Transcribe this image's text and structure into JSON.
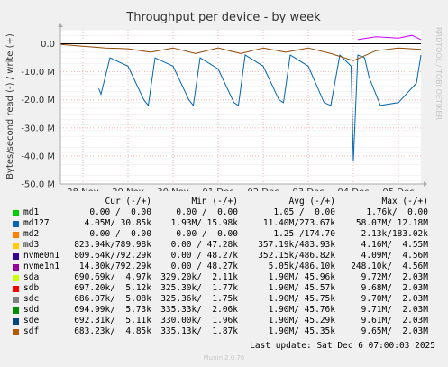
{
  "chart_data": {
    "type": "line",
    "title": "Throughput per device - by week",
    "ylabel": "Bytes/second read (-) / write (+)",
    "ylim": [
      -50000000,
      5000000
    ],
    "y_ticks": [
      {
        "v": 0,
        "label": "0.0"
      },
      {
        "v": -10000000,
        "label": "-10.0 M"
      },
      {
        "v": -20000000,
        "label": "-20.0 M"
      },
      {
        "v": -30000000,
        "label": "-30.0 M"
      },
      {
        "v": -40000000,
        "label": "-40.0 M"
      },
      {
        "v": -50000000,
        "label": "-50.0 M"
      }
    ],
    "x_range_days": [
      0,
      8
    ],
    "x_ticks": [
      {
        "v": 0.5,
        "label": "28 Nov"
      },
      {
        "v": 1.5,
        "label": "29 Nov"
      },
      {
        "v": 2.5,
        "label": "30 Nov"
      },
      {
        "v": 3.5,
        "label": "01 Dec"
      },
      {
        "v": 4.5,
        "label": "02 Dec"
      },
      {
        "v": 5.5,
        "label": "03 Dec"
      },
      {
        "v": 6.5,
        "label": "04 Dec"
      },
      {
        "v": 7.5,
        "label": "05 Dec"
      }
    ],
    "grid": true,
    "side_label": "RRDTOOL / TOBI OETIKER",
    "series": [
      {
        "name": "md127",
        "color": "#0066b3",
        "read_x": [
          0.85,
          0.9,
          1.1,
          1.5,
          1.85,
          1.95,
          2.1,
          2.5,
          2.85,
          2.95,
          3.1,
          3.5,
          3.85,
          3.95,
          4.1,
          4.5,
          4.85,
          4.95,
          5.1,
          5.5,
          5.85,
          6.0,
          6.2,
          6.45,
          6.5,
          6.6,
          6.75,
          6.85,
          7.1,
          7.5,
          7.9,
          8.0
        ],
        "read_y": [
          -16000000,
          -18000000,
          -5000000,
          -8000000,
          -20000000,
          -22000000,
          -5000000,
          -8000000,
          -20000000,
          -22000000,
          -5000000,
          -9000000,
          -21000000,
          -22000000,
          -4000000,
          -8000000,
          -20000000,
          -21000000,
          -4000000,
          -8000000,
          -21000000,
          -22000000,
          -4000000,
          -8000000,
          -42000000,
          -4000000,
          -5000000,
          -12000000,
          -22000000,
          -21000000,
          -14000000,
          -4000000
        ]
      },
      {
        "name": "sdf",
        "color": "#8f4a06",
        "read_x": [
          0,
          1.0,
          1.5,
          2.0,
          2.5,
          3.0,
          3.5,
          4.0,
          4.5,
          5.0,
          5.5,
          6.0,
          6.5,
          7.0,
          7.5,
          8.0
        ],
        "read_y": [
          -200000,
          -1500000,
          -1800000,
          -3000000,
          -1500000,
          -3500000,
          -1500000,
          -3500000,
          -1500000,
          -3000000,
          -1500000,
          -3500000,
          -6000000,
          -2500000,
          -1500000,
          -2000000
        ]
      },
      {
        "name": "nvme1n1",
        "color": "#cc00ff",
        "read_x": [
          6.6,
          7.0,
          7.5,
          7.8,
          8.0
        ],
        "read_y": [
          1500000,
          2500000,
          2000000,
          3000000,
          1500000
        ]
      }
    ]
  },
  "legend": {
    "header": {
      "cur": "Cur (-/+)",
      "min": "Min (-/+)",
      "avg": "Avg (-/+)",
      "max": "Max (-/+)"
    },
    "rows": [
      {
        "name": "md1",
        "color": "#00cc00",
        "cur": "0.00 /  0.00",
        "min": "0.00 /  0.00",
        "avg": "1.05 /  0.00",
        "max": "1.76k/  0.00"
      },
      {
        "name": "md127",
        "color": "#0066b3",
        "cur": "4.05M/ 30.85k",
        "min": "1.93M/ 15.98k",
        "avg": "11.40M/273.67k",
        "max": "58.07M/ 12.18M"
      },
      {
        "name": "md2",
        "color": "#ff8000",
        "cur": "0.00 /  0.00",
        "min": "0.00 /  0.00",
        "avg": "1.25 /174.70",
        "max": "2.13k/183.02k"
      },
      {
        "name": "md3",
        "color": "#ffcc00",
        "cur": "823.94k/789.98k",
        "min": "0.00 / 47.28k",
        "avg": "357.19k/483.93k",
        "max": "4.16M/  4.55M"
      },
      {
        "name": "nvme0n1",
        "color": "#330099",
        "cur": "809.64k/792.29k",
        "min": "0.00 / 48.27k",
        "avg": "352.15k/486.82k",
        "max": "4.09M/  4.56M"
      },
      {
        "name": "nvme1n1",
        "color": "#990099",
        "cur": "14.30k/792.29k",
        "min": "0.00 / 48.27k",
        "avg": "5.05k/486.10k",
        "max": "248.10k/  4.56M"
      },
      {
        "name": "sda",
        "color": "#ccff00",
        "cur": "690.69k/  4.97k",
        "min": "329.20k/  2.11k",
        "avg": "1.90M/ 45.96k",
        "max": "9.72M/  2.03M"
      },
      {
        "name": "sdb",
        "color": "#ff0000",
        "cur": "697.20k/  5.12k",
        "min": "325.30k/  1.77k",
        "avg": "1.90M/ 45.57k",
        "max": "9.68M/  2.03M"
      },
      {
        "name": "sdc",
        "color": "#808080",
        "cur": "686.07k/  5.08k",
        "min": "325.36k/  1.75k",
        "avg": "1.90M/ 45.75k",
        "max": "9.70M/  2.03M"
      },
      {
        "name": "sdd",
        "color": "#008f00",
        "cur": "694.99k/  5.73k",
        "min": "335.33k/  2.06k",
        "avg": "1.90M/ 45.76k",
        "max": "9.71M/  2.03M"
      },
      {
        "name": "sde",
        "color": "#00487d",
        "cur": "692.31k/  5.11k",
        "min": "330.00k/  1.96k",
        "avg": "1.90M/ 45.29k",
        "max": "9.61M/  2.03M"
      },
      {
        "name": "sdf",
        "color": "#b35a00",
        "cur": "683.23k/  4.85k",
        "min": "335.13k/  1.87k",
        "avg": "1.90M/ 45.35k",
        "max": "9.65M/  2.03M"
      }
    ]
  },
  "last_update": "Last update: Sat Dec  6 07:00:03 2025",
  "footer": "Munin 2.0.76"
}
